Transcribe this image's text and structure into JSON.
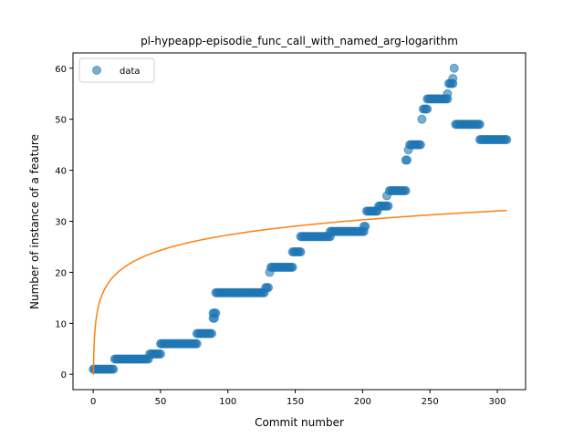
{
  "chart_data": {
    "type": "scatter",
    "title": "pl-hypeapp-episodie_func_call_with_named_arg-logarithm",
    "xlabel": "Commit number",
    "ylabel": "Number of instance of a feature",
    "xlim": [
      -15,
      321
    ],
    "ylim": [
      -3,
      63
    ],
    "x_ticks": [
      0,
      50,
      100,
      150,
      200,
      250,
      300
    ],
    "y_ticks": [
      0,
      10,
      20,
      30,
      40,
      50,
      60
    ],
    "grid": false,
    "legend_position": "top-left",
    "colors": {
      "data": "#1f77b4",
      "fit": "#ff7f0e"
    },
    "series": [
      {
        "name": "data",
        "kind": "scatter",
        "steps": [
          {
            "x_start": 0,
            "x_end": 15,
            "y": 1
          },
          {
            "x_start": 16,
            "x_end": 41,
            "y": 3
          },
          {
            "x_start": 42,
            "x_end": 50,
            "y": 4
          },
          {
            "x_start": 50,
            "x_end": 77,
            "y": 6
          },
          {
            "x_start": 77,
            "x_end": 88,
            "y": 8
          },
          {
            "x_start": 89,
            "x_end": 90,
            "y": 11
          },
          {
            "x_start": 89,
            "x_end": 91,
            "y": 12
          },
          {
            "x_start": 91,
            "x_end": 127,
            "y": 16
          },
          {
            "x_start": 128,
            "x_end": 130,
            "y": 17
          },
          {
            "x_start": 131,
            "x_end": 131,
            "y": 20
          },
          {
            "x_start": 132,
            "x_end": 148,
            "y": 21
          },
          {
            "x_start": 148,
            "x_end": 154,
            "y": 24
          },
          {
            "x_start": 154,
            "x_end": 176,
            "y": 27
          },
          {
            "x_start": 176,
            "x_end": 201,
            "y": 28
          },
          {
            "x_start": 201,
            "x_end": 202,
            "y": 29
          },
          {
            "x_start": 203,
            "x_end": 211,
            "y": 32
          },
          {
            "x_start": 212,
            "x_end": 219,
            "y": 33
          },
          {
            "x_start": 218,
            "x_end": 218,
            "y": 35
          },
          {
            "x_start": 220,
            "x_end": 232,
            "y": 36
          },
          {
            "x_start": 232,
            "x_end": 233,
            "y": 42
          },
          {
            "x_start": 234,
            "x_end": 234,
            "y": 44
          },
          {
            "x_start": 235,
            "x_end": 243,
            "y": 45
          },
          {
            "x_start": 244,
            "x_end": 244,
            "y": 50
          },
          {
            "x_start": 245,
            "x_end": 248,
            "y": 52
          },
          {
            "x_start": 248,
            "x_end": 263,
            "y": 54
          },
          {
            "x_start": 263,
            "x_end": 263,
            "y": 55
          },
          {
            "x_start": 264,
            "x_end": 267,
            "y": 57
          },
          {
            "x_start": 267,
            "x_end": 267,
            "y": 58
          },
          {
            "x_start": 268,
            "x_end": 268,
            "y": 60
          },
          {
            "x_start": 269,
            "x_end": 287,
            "y": 49
          },
          {
            "x_start": 287,
            "x_end": 307,
            "y": 46
          }
        ]
      },
      {
        "name": "",
        "kind": "line",
        "x_range": [
          0,
          307
        ],
        "function": "4.4*ln(x+1)+6.9"
      }
    ],
    "legend": [
      "data"
    ]
  }
}
